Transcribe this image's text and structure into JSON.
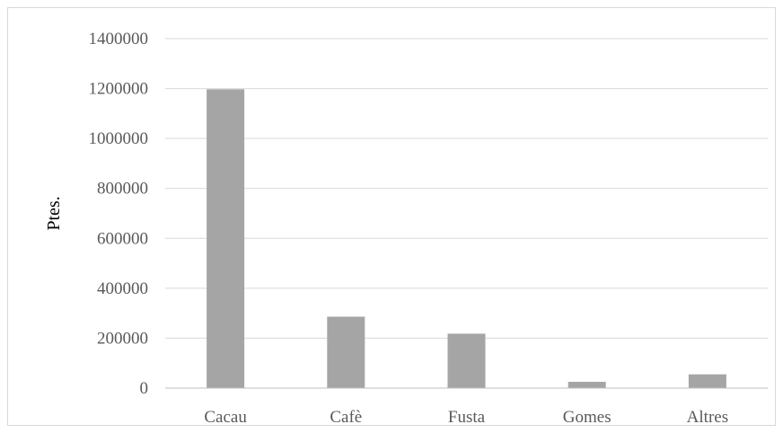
{
  "chart_data": {
    "type": "bar",
    "title": "",
    "xlabel": "",
    "ylabel": "Ptes.",
    "categories": [
      "Cacau",
      "Cafè",
      "Fusta",
      "Gomes",
      "Altres"
    ],
    "values": [
      1197000,
      286000,
      218000,
      25000,
      55000
    ],
    "ylim": [
      0,
      1400000
    ],
    "yticks": [
      "0",
      "200000",
      "400000",
      "600000",
      "800000",
      "1000000",
      "1200000",
      "1400000"
    ],
    "grid": true,
    "legend": "none",
    "colors": {
      "bar": "#a5a5a5",
      "grid": "#d9d9d9",
      "axis": "#bfbfbf"
    }
  }
}
